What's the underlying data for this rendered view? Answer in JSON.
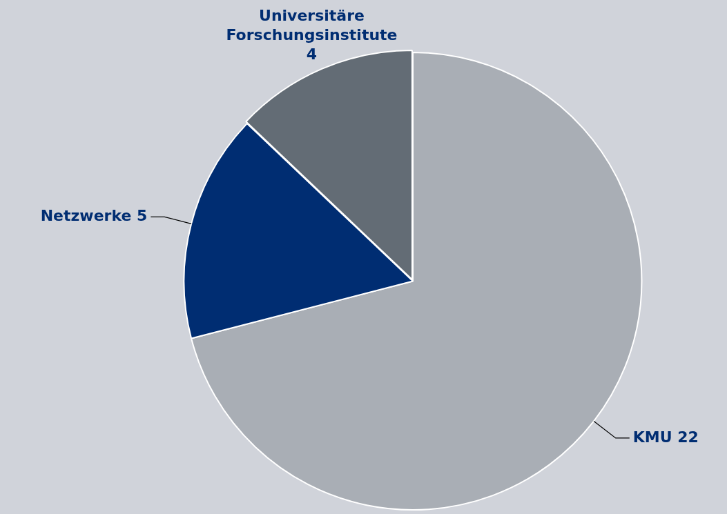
{
  "chart_data": {
    "type": "pie",
    "categories": [
      "KMU",
      "Netzwerke",
      "Universitäre Forschungsinstitute"
    ],
    "values": [
      22,
      5,
      4
    ],
    "colors": [
      "#a9aeb5",
      "#002d72",
      "#636c75"
    ],
    "data_labels": true,
    "legend": false
  }
}
